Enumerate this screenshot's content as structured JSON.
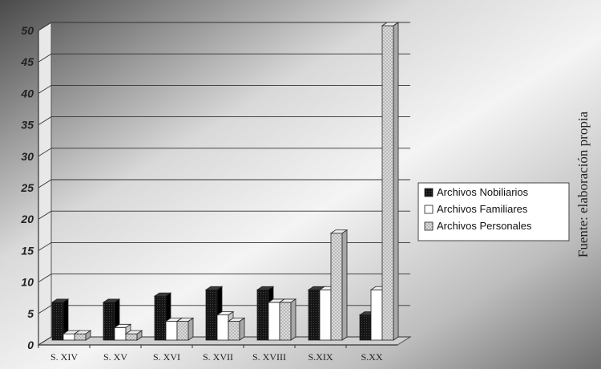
{
  "chart_data": {
    "type": "bar",
    "categories": [
      "S. XIV",
      "S. XV",
      "S. XVI",
      "S. XVII",
      "S. XVIII",
      "S.XIX",
      "S.XX"
    ],
    "series": [
      {
        "name": "Archivos Nobiliarios",
        "values": [
          6,
          6,
          7,
          8,
          8,
          8,
          4
        ],
        "color": "#1a1a1a"
      },
      {
        "name": "Archivos Familiares",
        "values": [
          1,
          2,
          3,
          4,
          6,
          8,
          8
        ],
        "color": "#ffffff"
      },
      {
        "name": "Archivos Personales",
        "values": [
          1,
          1,
          3,
          3,
          6,
          17,
          50
        ],
        "color": "#d8d8d8"
      }
    ],
    "yticks": [
      "0",
      "5",
      "10",
      "15",
      "20",
      "25",
      "30",
      "35",
      "40",
      "45",
      "50"
    ],
    "ylim": [
      0,
      50
    ],
    "grid": true,
    "legend_position": "right",
    "title": "",
    "xlabel": "",
    "ylabel": ""
  },
  "source_note": "Fuente: elaboración propia"
}
